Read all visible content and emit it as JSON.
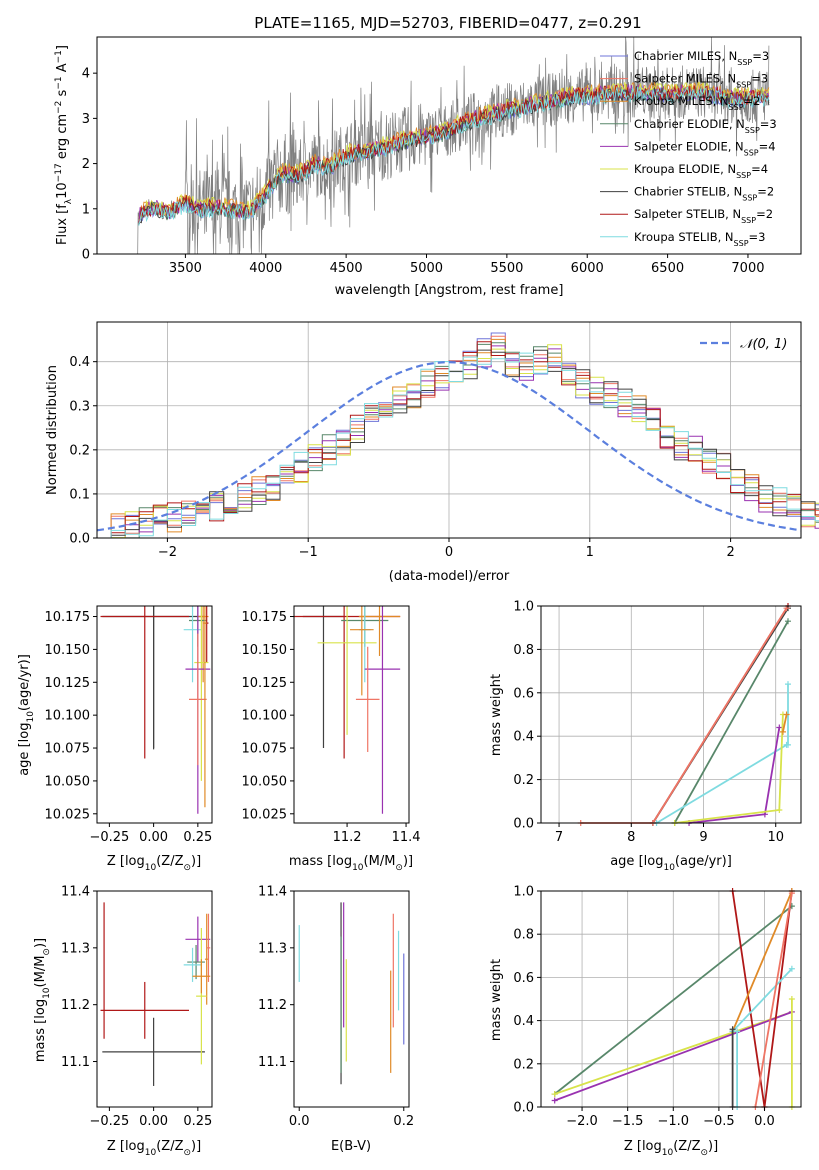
{
  "figure_title": "PLATE=1165, MJD=52703, FIBERID=0477, z=0.291",
  "series_styles": [
    {
      "name": "Chabrier MILES",
      "nssp": "3",
      "color": "#6f74d8"
    },
    {
      "name": "Salpeter MILES",
      "nssp": "3",
      "color": "#ef7565"
    },
    {
      "name": "Kroupa MILES",
      "nssp": "2",
      "color": "#e08a28"
    },
    {
      "name": "Chabrier ELODIE",
      "nssp": "3",
      "color": "#58876a"
    },
    {
      "name": "Salpeter ELODIE",
      "nssp": "4",
      "color": "#9932b0"
    },
    {
      "name": "Kroupa ELODIE",
      "nssp": "4",
      "color": "#d8e34a"
    },
    {
      "name": "Chabrier STELIB",
      "nssp": "2",
      "color": "#404040"
    },
    {
      "name": "Salpeter STELIB",
      "nssp": "2",
      "color": "#b01818"
    },
    {
      "name": "Kroupa STELIB",
      "nssp": "3",
      "color": "#7fdbe0"
    }
  ],
  "chart_data": [
    {
      "id": "spectrum",
      "type": "line",
      "xlabel": "wavelength [Angstrom, rest frame]",
      "ylabel": "Flux [f_λ 10^-17 erg cm^-2 s^-1 A^-1]",
      "xlim": [
        2950,
        7330
      ],
      "ylim": [
        0,
        4.8
      ],
      "xticks": [
        3500,
        4000,
        4500,
        5000,
        5500,
        6000,
        6500,
        7000
      ],
      "yticks": [
        0,
        1,
        2,
        3,
        4
      ],
      "legend": "upper-right",
      "data_color": "#7f7f7f",
      "data_range": [
        3200,
        7130
      ],
      "model_x": [
        3200,
        3300,
        3400,
        3500,
        3600,
        3700,
        3800,
        3900,
        4000,
        4100,
        4200,
        4300,
        4400,
        4500,
        4700,
        4900,
        5100,
        5300,
        5500,
        5700,
        5900,
        6100,
        6300,
        6500,
        6700,
        6900,
        7130
      ],
      "model_y": [
        0.85,
        1.05,
        0.95,
        1.15,
        1.0,
        1.05,
        1.0,
        0.95,
        1.35,
        1.8,
        1.75,
        2.0,
        1.95,
        2.2,
        2.35,
        2.55,
        2.7,
        3.0,
        3.2,
        3.35,
        3.5,
        3.55,
        3.6,
        3.55,
        3.6,
        3.45,
        3.5
      ]
    },
    {
      "id": "residuals",
      "type": "histogram",
      "xlabel": "(data-model)/error",
      "ylabel": "Normed distribution",
      "xlim": [
        -2.5,
        2.5
      ],
      "ylim": [
        0,
        0.49
      ],
      "xticks": [
        -2,
        -1,
        0,
        1,
        2
      ],
      "yticks": [
        0.0,
        0.1,
        0.2,
        0.3,
        0.4
      ],
      "grid": true,
      "legend": "upper-right",
      "reference_curve": {
        "label": "N(0,1)",
        "color": "#5b7fde"
      },
      "bin_width": 0.1,
      "bins_start": -2.5,
      "base_values": [
        0.02,
        0.025,
        0.03,
        0.035,
        0.04,
        0.045,
        0.05,
        0.06,
        0.07,
        0.08,
        0.09,
        0.11,
        0.12,
        0.14,
        0.16,
        0.18,
        0.2,
        0.22,
        0.25,
        0.27,
        0.29,
        0.31,
        0.33,
        0.35,
        0.37,
        0.38,
        0.39,
        0.42,
        0.43,
        0.4,
        0.39,
        0.4,
        0.41,
        0.38,
        0.35,
        0.33,
        0.32,
        0.31,
        0.29,
        0.26,
        0.23,
        0.21,
        0.2,
        0.18,
        0.16,
        0.13,
        0.11,
        0.09,
        0.08,
        0.07,
        0.06,
        0.05,
        0.04,
        0.035,
        0.03
      ]
    },
    {
      "id": "age-metallicity",
      "type": "scatter",
      "xlabel": "Z [log10(Z/Z⊙)]",
      "ylabel": "age [log10(age/yr)]",
      "xlim": [
        -0.32,
        0.33
      ],
      "ylim": [
        10.018,
        10.183
      ],
      "xticks": [
        -0.25,
        0.0,
        0.25
      ],
      "yticks": [
        10.025,
        10.05,
        10.075,
        10.1,
        10.125,
        10.15,
        10.175
      ],
      "points": [
        {
          "s": 7,
          "x": 0.0,
          "y": 10.175,
          "ex": 0.29,
          "ey": 0.1
        },
        {
          "s": 7,
          "x": 0.0,
          "y": 10.174,
          "ex": 0.0,
          "ey": 0.1
        },
        {
          "s": 8,
          "x": -0.05,
          "y": 10.175,
          "ex": 0.25,
          "ey": 0.108
        },
        {
          "s": 3,
          "x": 0.28,
          "y": 10.175,
          "ex": 0.03,
          "ey": 0.05
        },
        {
          "s": 4,
          "x": 0.25,
          "y": 10.172,
          "ex": 0.05,
          "ey": 0.02
        },
        {
          "s": 8,
          "x": 0.3,
          "y": 10.17,
          "ex": 0.01,
          "ey": 0.03
        },
        {
          "s": 9,
          "x": 0.22,
          "y": 10.165,
          "ex": 0.05,
          "ey": 0.04
        },
        {
          "s": 6,
          "x": 0.27,
          "y": 10.14,
          "ex": 0.04,
          "ey": 0.09
        },
        {
          "s": 5,
          "x": 0.25,
          "y": 10.135,
          "ex": 0.07,
          "ey": 0.11
        },
        {
          "s": 2,
          "x": 0.25,
          "y": 10.112,
          "ex": 0.05,
          "ey": 0.05
        },
        {
          "s": 3,
          "x": 0.29,
          "y": 10.17,
          "ex": 0.01,
          "ey": 0.14
        }
      ]
    },
    {
      "id": "age-mass",
      "type": "scatter",
      "xlabel": "mass [log10(M/M⊙)]",
      "ylabel": "",
      "xlim": [
        11.02,
        11.41
      ],
      "ylim": [
        10.018,
        10.183
      ],
      "xticks": [
        11.2,
        11.4
      ],
      "yticks": [
        10.025,
        10.05,
        10.075,
        10.1,
        10.125,
        10.15,
        10.175
      ],
      "points": [
        {
          "s": 7,
          "x": 11.12,
          "y": 10.175,
          "ex": 0.07,
          "ey": 0.1
        },
        {
          "s": 8,
          "x": 11.19,
          "y": 10.175,
          "ex": 0.19,
          "ey": 0.108
        },
        {
          "s": 4,
          "x": 11.26,
          "y": 10.172,
          "ex": 0.08,
          "ey": 0.02
        },
        {
          "s": 3,
          "x": 11.31,
          "y": 10.175,
          "ex": 0.07,
          "ey": 0.03
        },
        {
          "s": 6,
          "x": 11.2,
          "y": 10.155,
          "ex": 0.1,
          "ey": 0.07
        },
        {
          "s": 9,
          "x": 11.26,
          "y": 10.165,
          "ex": 0.02,
          "ey": 0.04
        },
        {
          "s": 5,
          "x": 11.32,
          "y": 10.135,
          "ex": 0.06,
          "ey": 0.11
        },
        {
          "s": 2,
          "x": 11.27,
          "y": 10.112,
          "ex": 0.04,
          "ey": 0.04
        },
        {
          "s": 3,
          "x": 11.25,
          "y": 10.165,
          "ex": 0.04,
          "ey": 0.05
        }
      ]
    },
    {
      "id": "mass-weight-age",
      "type": "line",
      "xlabel": "age [log10(age/yr)]",
      "ylabel": "mass weight",
      "xlim": [
        6.75,
        10.35
      ],
      "ylim": [
        0,
        1
      ],
      "xticks": [
        7,
        8,
        9,
        10
      ],
      "yticks": [
        0.0,
        0.2,
        0.4,
        0.6,
        0.8,
        1.0
      ],
      "grid": true,
      "lines": [
        {
          "s": 8,
          "x": [
            8.3,
            10.17
          ],
          "y": [
            0.0,
            1.0
          ]
        },
        {
          "s": 7,
          "x": [
            8.3,
            10.17
          ],
          "y": [
            0.0,
            0.99
          ]
        },
        {
          "s": 2,
          "x": [
            7.3,
            8.3,
            10.15
          ],
          "y": [
            0.0,
            0.0,
            0.99
          ]
        },
        {
          "s": 4,
          "x": [
            8.6,
            10.17
          ],
          "y": [
            0.0,
            0.93
          ]
        },
        {
          "s": 9,
          "x": [
            8.35,
            10.15
          ],
          "y": [
            0.0,
            0.36
          ]
        },
        {
          "s": 9,
          "x": [
            10.17,
            10.17
          ],
          "y": [
            0.36,
            0.64
          ]
        },
        {
          "s": 5,
          "x": [
            8.8,
            9.85,
            10.05
          ],
          "y": [
            0.0,
            0.04,
            0.44
          ]
        },
        {
          "s": 6,
          "x": [
            8.6,
            10.05,
            10.1
          ],
          "y": [
            0.0,
            0.06,
            0.5
          ]
        },
        {
          "s": 3,
          "x": [
            10.1,
            10.15
          ],
          "y": [
            0.42,
            0.5
          ]
        }
      ]
    },
    {
      "id": "mass-metallicity",
      "type": "scatter",
      "xlabel": "Z [log10(Z/Z⊙)]",
      "ylabel": "mass [log10(M/M⊙)]",
      "xlim": [
        -0.32,
        0.33
      ],
      "ylim": [
        11.02,
        11.4
      ],
      "xticks": [
        -0.25,
        0.0,
        0.25
      ],
      "yticks": [
        11.1,
        11.2,
        11.3,
        11.4
      ],
      "points": [
        {
          "s": 7,
          "x": 0.0,
          "y": 11.117,
          "ex": 0.29,
          "ey": 0.06
        },
        {
          "s": 8,
          "x": -0.05,
          "y": 11.19,
          "ex": 0.25,
          "ey": 0.05
        },
        {
          "s": 8,
          "x": -0.28,
          "y": 11.26,
          "ex": 0.0,
          "ey": 0.12
        },
        {
          "s": 5,
          "x": 0.25,
          "y": 11.315,
          "ex": 0.07,
          "ey": 0.04
        },
        {
          "s": 4,
          "x": 0.24,
          "y": 11.275,
          "ex": 0.05,
          "ey": 0.03
        },
        {
          "s": 9,
          "x": 0.22,
          "y": 11.27,
          "ex": 0.05,
          "ey": 0.03
        },
        {
          "s": 3,
          "x": 0.3,
          "y": 11.28,
          "ex": 0.01,
          "ey": 0.08
        },
        {
          "s": 6,
          "x": 0.27,
          "y": 11.215,
          "ex": 0.03,
          "ey": 0.12
        },
        {
          "s": 2,
          "x": 0.31,
          "y": 11.3,
          "ex": 0.01,
          "ey": 0.06
        },
        {
          "s": 3,
          "x": 0.27,
          "y": 11.25,
          "ex": 0.05,
          "ey": 0.03
        }
      ]
    },
    {
      "id": "mass-ebv",
      "type": "scatter",
      "xlabel": "E(B-V)",
      "ylabel": "",
      "xlim": [
        -0.01,
        0.21
      ],
      "ylim": [
        11.02,
        11.4
      ],
      "xticks": [
        0.0,
        0.2
      ],
      "yticks": [
        11.1,
        11.2,
        11.3,
        11.4
      ],
      "points": [
        {
          "s": 9,
          "x": 0.0,
          "y": 11.29,
          "ex": 0.0,
          "ey": 0.05
        },
        {
          "s": 7,
          "x": 0.08,
          "y": 11.22,
          "ex": 0.0,
          "ey": 0.16
        },
        {
          "s": 5,
          "x": 0.085,
          "y": 11.27,
          "ex": 0.0,
          "ey": 0.11
        },
        {
          "s": 4,
          "x": 0.08,
          "y": 11.2,
          "ex": 0.0,
          "ey": 0.12
        },
        {
          "s": 6,
          "x": 0.09,
          "y": 11.19,
          "ex": 0.0,
          "ey": 0.09
        },
        {
          "s": 3,
          "x": 0.175,
          "y": 11.17,
          "ex": 0.0,
          "ey": 0.09
        },
        {
          "s": 2,
          "x": 0.18,
          "y": 11.26,
          "ex": 0.0,
          "ey": 0.1
        },
        {
          "s": 1,
          "x": 0.2,
          "y": 11.21,
          "ex": 0.0,
          "ey": 0.08
        },
        {
          "s": 9,
          "x": 0.19,
          "y": 11.26,
          "ex": 0.0,
          "ey": 0.07
        }
      ]
    },
    {
      "id": "mass-weight-metallicity",
      "type": "line",
      "xlabel": "Z [log10(Z/Z⊙)]",
      "ylabel": "mass weight",
      "xlim": [
        -2.45,
        0.4
      ],
      "ylim": [
        0,
        1
      ],
      "xticks": [
        -2.0,
        -1.5,
        -1.0,
        -0.5,
        0.0
      ],
      "yticks": [
        0.0,
        0.2,
        0.4,
        0.6,
        0.8,
        1.0
      ],
      "grid": true,
      "lines": [
        {
          "s": 4,
          "x": [
            -2.3,
            0.3
          ],
          "y": [
            0.06,
            0.93
          ]
        },
        {
          "s": 6,
          "x": [
            -2.3,
            0.3
          ],
          "y": [
            0.06,
            0.44
          ]
        },
        {
          "s": 5,
          "x": [
            -2.3,
            0.3
          ],
          "y": [
            0.03,
            0.44
          ]
        },
        {
          "s": 8,
          "x": [
            -0.35,
            0.0,
            0.3
          ],
          "y": [
            1.0,
            0.0,
            1.0
          ]
        },
        {
          "s": 3,
          "x": [
            -0.35,
            0.3
          ],
          "y": [
            0.35,
            1.0
          ]
        },
        {
          "s": 9,
          "x": [
            -0.35,
            0.3
          ],
          "y": [
            0.35,
            0.64
          ]
        },
        {
          "s": 9,
          "x": [
            -0.3,
            -0.3
          ],
          "y": [
            0.0,
            0.35
          ]
        },
        {
          "s": 7,
          "x": [
            -0.35,
            -0.35
          ],
          "y": [
            0.0,
            0.36
          ]
        },
        {
          "s": 2,
          "x": [
            -0.1,
            0.3
          ],
          "y": [
            0.0,
            0.99
          ]
        },
        {
          "s": 6,
          "x": [
            0.3,
            0.3
          ],
          "y": [
            0.0,
            0.5
          ]
        }
      ]
    }
  ]
}
